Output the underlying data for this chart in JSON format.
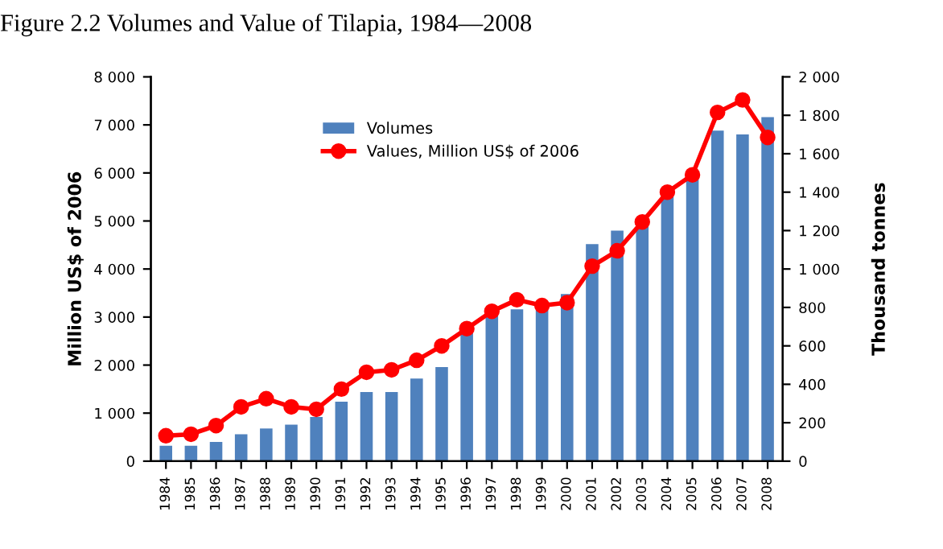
{
  "chart_data": {
    "type": "bar",
    "title": "Figure 2.2 Volumes and Value of Tilapia, 1984—2008",
    "ylabel": "Million US$ of 2006",
    "y2label": "Thousand tonnes",
    "categories": [
      "1984",
      "1985",
      "1986",
      "1987",
      "1988",
      "1989",
      "1990",
      "1991",
      "1992",
      "1993",
      "1994",
      "1995",
      "1996",
      "1997",
      "1998",
      "1999",
      "2000",
      "2001",
      "2002",
      "2003",
      "2004",
      "2005",
      "2006",
      "2007",
      "2008"
    ],
    "series": [
      {
        "name": "Volumes",
        "axis": "y2",
        "color": "#4f81bd",
        "values": [
          80,
          80,
          100,
          140,
          170,
          190,
          230,
          310,
          360,
          360,
          430,
          490,
          680,
          770,
          790,
          800,
          870,
          1130,
          1200,
          1230,
          1380,
          1480,
          1720,
          1700,
          1790
        ]
      },
      {
        "name": "Values, Million US$ of 2006",
        "type": "line",
        "axis": "y",
        "color": "#ff0000",
        "marker": "circle",
        "values": [
          530,
          560,
          740,
          1130,
          1300,
          1130,
          1080,
          1500,
          1850,
          1900,
          2100,
          2400,
          2760,
          3120,
          3360,
          3240,
          3300,
          4060,
          4380,
          4980,
          5600,
          5960,
          7260,
          7520,
          6740
        ]
      }
    ],
    "ylim": [
      0,
      8000
    ],
    "yticks": [
      {
        "value": 0,
        "label": "0"
      },
      {
        "value": 1000,
        "label": "1 000"
      },
      {
        "value": 2000,
        "label": "2 000"
      },
      {
        "value": 3000,
        "label": "3 000"
      },
      {
        "value": 4000,
        "label": "4 000"
      },
      {
        "value": 5000,
        "label": "5 000"
      },
      {
        "value": 6000,
        "label": "6 000"
      },
      {
        "value": 7000,
        "label": "7 000"
      },
      {
        "value": 8000,
        "label": "8 000"
      }
    ],
    "y2lim": [
      0,
      2000
    ],
    "y2ticks": [
      0,
      200,
      400,
      600,
      800,
      {
        "value": 1000,
        "label": "1 000"
      },
      {
        "value": 1200,
        "label": "1 200"
      },
      {
        "value": 1400,
        "label": "1 400"
      },
      {
        "value": 1600,
        "label": "1 600"
      },
      {
        "value": 1800,
        "label": "1 800"
      },
      {
        "value": 2000,
        "label": "2 000"
      }
    ],
    "legend": "top left",
    "grid": false
  }
}
